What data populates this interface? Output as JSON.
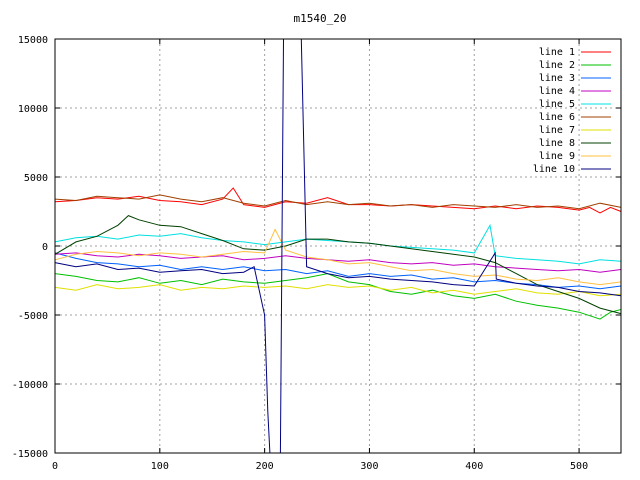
{
  "chart_data": {
    "type": "line",
    "title": "m1540_20",
    "xlabel": "",
    "ylabel": "",
    "xlim": [
      0,
      540
    ],
    "ylim": [
      -15000,
      15000
    ],
    "xticks": [
      0,
      100,
      200,
      300,
      400,
      500
    ],
    "yticks": [
      -15000,
      -10000,
      -5000,
      0,
      5000,
      10000,
      15000
    ],
    "grid": true,
    "legend_position": "top-right",
    "series": [
      {
        "name": "line 1",
        "color": "#ff0000",
        "x": [
          0,
          20,
          40,
          60,
          80,
          100,
          120,
          140,
          160,
          170,
          180,
          200,
          220,
          240,
          260,
          280,
          300,
          320,
          340,
          360,
          380,
          400,
          420,
          440,
          460,
          480,
          500,
          510,
          520,
          530,
          540
        ],
        "y": [
          3200,
          3300,
          3500,
          3400,
          3600,
          3300,
          3200,
          3000,
          3400,
          4200,
          3000,
          2800,
          3200,
          3100,
          3500,
          3000,
          3000,
          2900,
          3000,
          2900,
          2800,
          2700,
          2900,
          2700,
          2900,
          2800,
          2600,
          2800,
          2400,
          2800,
          2500
        ]
      },
      {
        "name": "line 2",
        "color": "#00c000",
        "x": [
          0,
          20,
          40,
          60,
          80,
          100,
          120,
          140,
          160,
          180,
          200,
          220,
          240,
          260,
          280,
          300,
          320,
          340,
          360,
          380,
          400,
          420,
          440,
          460,
          480,
          500,
          520,
          530,
          540
        ],
        "y": [
          -2000,
          -2200,
          -2500,
          -2600,
          -2300,
          -2700,
          -2500,
          -2800,
          -2400,
          -2600,
          -2700,
          -2500,
          -2300,
          -2000,
          -2600,
          -2800,
          -3300,
          -3500,
          -3200,
          -3600,
          -3800,
          -3500,
          -4000,
          -4300,
          -4500,
          -4800,
          -5300,
          -4800,
          -4600
        ]
      },
      {
        "name": "line 3",
        "color": "#0060ff",
        "x": [
          0,
          20,
          40,
          60,
          80,
          100,
          120,
          140,
          160,
          180,
          200,
          220,
          240,
          260,
          280,
          300,
          320,
          340,
          360,
          380,
          400,
          420,
          440,
          460,
          480,
          500,
          520,
          540
        ],
        "y": [
          -500,
          -900,
          -1200,
          -1300,
          -1500,
          -1400,
          -1700,
          -1500,
          -1700,
          -1500,
          -1800,
          -1700,
          -2000,
          -1800,
          -2200,
          -2000,
          -2200,
          -2100,
          -2400,
          -2300,
          -2600,
          -2500,
          -2700,
          -2800,
          -3000,
          -2900,
          -3100,
          -2900
        ]
      },
      {
        "name": "line 4",
        "color": "#c000c0",
        "x": [
          0,
          20,
          40,
          60,
          80,
          100,
          120,
          140,
          160,
          180,
          200,
          220,
          240,
          260,
          280,
          300,
          320,
          340,
          360,
          380,
          400,
          420,
          440,
          460,
          480,
          500,
          520,
          540
        ],
        "y": [
          -600,
          -500,
          -700,
          -800,
          -600,
          -700,
          -900,
          -800,
          -700,
          -1000,
          -900,
          -700,
          -900,
          -1000,
          -1100,
          -1000,
          -1200,
          -1300,
          -1200,
          -1400,
          -1300,
          -1500,
          -1600,
          -1700,
          -1800,
          -1700,
          -1900,
          -1700
        ]
      },
      {
        "name": "line 5",
        "color": "#00e0e0",
        "x": [
          0,
          20,
          40,
          60,
          80,
          100,
          120,
          140,
          160,
          180,
          200,
          220,
          240,
          260,
          280,
          300,
          320,
          340,
          360,
          380,
          400,
          415,
          420,
          440,
          460,
          480,
          500,
          520,
          540
        ],
        "y": [
          300,
          600,
          700,
          500,
          800,
          700,
          900,
          600,
          400,
          300,
          100,
          300,
          500,
          400,
          300,
          200,
          0,
          -100,
          -200,
          -300,
          -500,
          1500,
          -700,
          -900,
          -1000,
          -1100,
          -1300,
          -1000,
          -1100
        ]
      },
      {
        "name": "line 6",
        "color": "#a04000",
        "x": [
          0,
          20,
          40,
          60,
          80,
          100,
          120,
          140,
          160,
          180,
          200,
          220,
          240,
          260,
          280,
          300,
          320,
          340,
          360,
          380,
          400,
          420,
          440,
          460,
          480,
          500,
          520,
          540
        ],
        "y": [
          3400,
          3300,
          3600,
          3500,
          3400,
          3700,
          3400,
          3200,
          3500,
          3100,
          2900,
          3300,
          3000,
          3200,
          3000,
          3100,
          2900,
          3000,
          2800,
          3000,
          2900,
          2800,
          3000,
          2800,
          2900,
          2700,
          3100,
          2800
        ]
      },
      {
        "name": "line 7",
        "color": "#e0e000",
        "x": [
          0,
          20,
          40,
          60,
          80,
          100,
          120,
          140,
          160,
          180,
          200,
          220,
          240,
          260,
          280,
          300,
          320,
          340,
          360,
          380,
          400,
          420,
          440,
          460,
          480,
          500,
          520,
          540
        ],
        "y": [
          -3000,
          -3200,
          -2800,
          -3100,
          -3000,
          -2800,
          -3200,
          -3000,
          -3100,
          -2900,
          -3000,
          -2900,
          -3100,
          -2800,
          -3000,
          -2900,
          -3200,
          -3000,
          -3400,
          -3200,
          -3500,
          -3300,
          -3100,
          -3400,
          -3500,
          -3300,
          -3600,
          -3500
        ]
      },
      {
        "name": "line 8",
        "color": "#004000",
        "x": [
          0,
          20,
          40,
          60,
          70,
          80,
          100,
          120,
          140,
          160,
          180,
          200,
          220,
          240,
          260,
          280,
          300,
          320,
          340,
          360,
          380,
          400,
          420,
          440,
          460,
          480,
          500,
          520,
          540
        ],
        "y": [
          -600,
          300,
          700,
          1500,
          2200,
          1900,
          1500,
          1400,
          900,
          400,
          -200,
          -300,
          0,
          500,
          500,
          300,
          200,
          0,
          -200,
          -400,
          -600,
          -800,
          -1200,
          -2000,
          -2800,
          -3300,
          -3800,
          -4500,
          -4900
        ]
      },
      {
        "name": "line 9",
        "color": "#ffc040",
        "x": [
          0,
          20,
          40,
          60,
          80,
          100,
          120,
          140,
          160,
          180,
          200,
          210,
          220,
          240,
          260,
          280,
          300,
          320,
          340,
          360,
          380,
          400,
          420,
          440,
          460,
          480,
          500,
          520,
          540
        ],
        "y": [
          -1000,
          -600,
          -400,
          -500,
          -700,
          -500,
          -600,
          -800,
          -600,
          -400,
          -500,
          1200,
          -300,
          -800,
          -1000,
          -1300,
          -1200,
          -1500,
          -1800,
          -1700,
          -2000,
          -2200,
          -2100,
          -2400,
          -2500,
          -2300,
          -2600,
          -2800,
          -2600
        ]
      },
      {
        "name": "line 10",
        "color": "#000080",
        "x": [
          0,
          20,
          40,
          60,
          80,
          100,
          120,
          140,
          160,
          180,
          190,
          200,
          203,
          205,
          215,
          218,
          222,
          228,
          235,
          240,
          260,
          280,
          300,
          320,
          340,
          360,
          380,
          400,
          420,
          421,
          440,
          460,
          480,
          500,
          520,
          540
        ],
        "y": [
          -1200,
          -1500,
          -1300,
          -1700,
          -1600,
          -1900,
          -1800,
          -1700,
          -2000,
          -1900,
          -1500,
          -5000,
          -12000,
          -15000,
          -15000,
          15000,
          15000,
          15000,
          15000,
          -1500,
          -2000,
          -2300,
          -2200,
          -2400,
          -2500,
          -2600,
          -2800,
          -2900,
          -500,
          -2400,
          -2700,
          -2900,
          -3000,
          -3300,
          -3400,
          -3600
        ]
      }
    ]
  }
}
